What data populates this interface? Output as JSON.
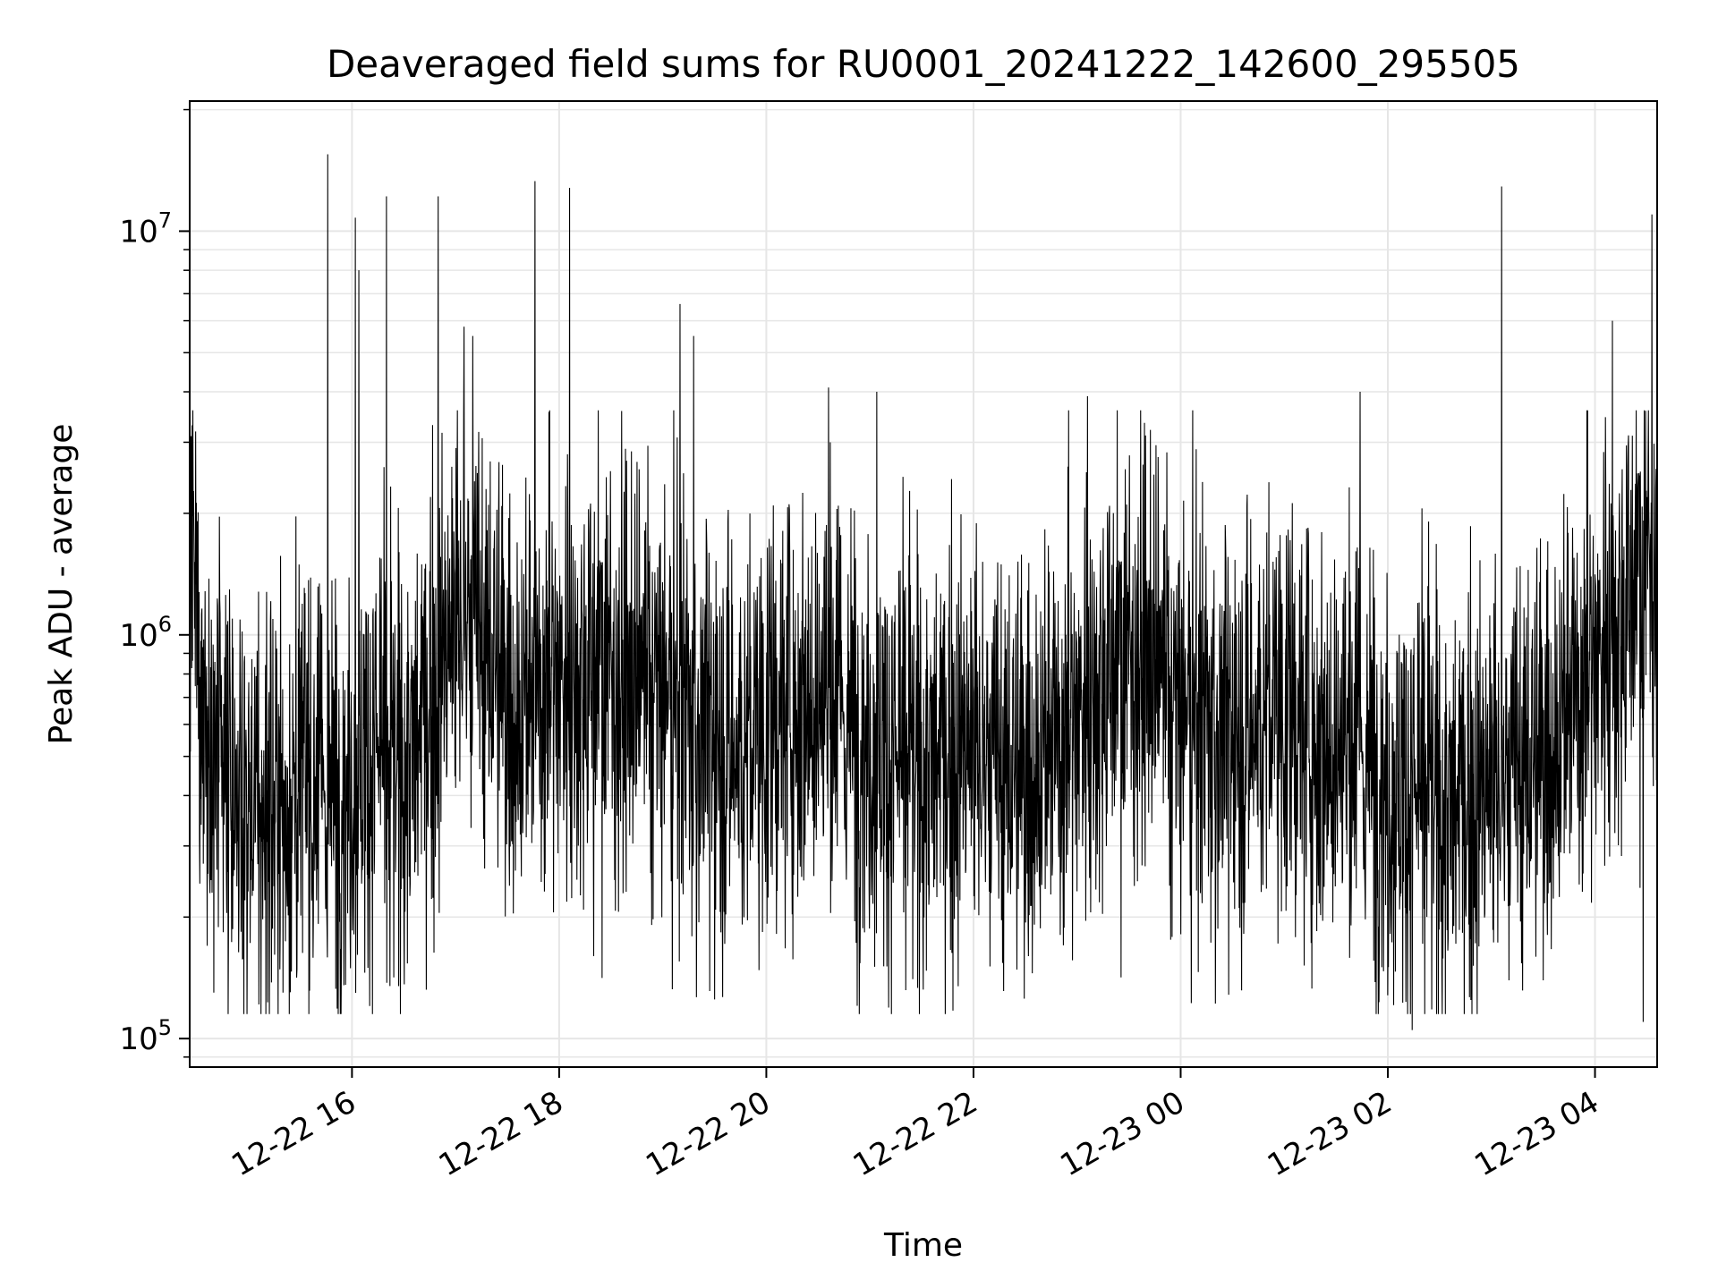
{
  "chart_data": {
    "type": "line",
    "title": "Deaveraged field sums for RU0001_20241222_142600_295505",
    "xlabel": "Time",
    "ylabel": "Peak ADU - average",
    "yscale": "log",
    "ylim": [
      85000,
      21000000
    ],
    "xlim": [
      "2024-12-22 14:26",
      "2024-12-23 04:36"
    ],
    "grid": true,
    "x_tick_labels": [
      {
        "t": "2024-12-22 16:00",
        "label": "12-22 16"
      },
      {
        "t": "2024-12-22 18:00",
        "label": "12-22 18"
      },
      {
        "t": "2024-12-22 20:00",
        "label": "12-22 20"
      },
      {
        "t": "2024-12-22 22:00",
        "label": "12-22 22"
      },
      {
        "t": "2024-12-23 00:00",
        "label": "12-23 00"
      },
      {
        "t": "2024-12-23 02:00",
        "label": "12-23 02"
      },
      {
        "t": "2024-12-23 04:00",
        "label": "12-23 04"
      }
    ],
    "y_tick_labels": [
      {
        "value": 100000,
        "base": "10",
        "exp": "5"
      },
      {
        "value": 1000000,
        "base": "10",
        "exp": "6"
      },
      {
        "value": 10000000,
        "base": "10",
        "exp": "7"
      }
    ],
    "line_color": "#000000",
    "series": [
      {
        "x": [
          "2024-12-22 14:26",
          "2024-12-22 14:35",
          "2024-12-22 14:45",
          "2024-12-22 14:55",
          "2024-12-22 15:05",
          "2024-12-22 15:15",
          "2024-12-22 15:25",
          "2024-12-22 15:35",
          "2024-12-22 15:45",
          "2024-12-22 15:55",
          "2024-12-22 16:05",
          "2024-12-22 16:15",
          "2024-12-22 16:25",
          "2024-12-22 16:35",
          "2024-12-22 16:45",
          "2024-12-22 16:55",
          "2024-12-22 17:05",
          "2024-12-22 17:15",
          "2024-12-22 17:25",
          "2024-12-22 17:35",
          "2024-12-22 17:45",
          "2024-12-22 17:55",
          "2024-12-22 18:05",
          "2024-12-22 18:15",
          "2024-12-22 18:25",
          "2024-12-22 18:35",
          "2024-12-22 18:45",
          "2024-12-22 18:55",
          "2024-12-22 19:05",
          "2024-12-22 19:15",
          "2024-12-22 19:25",
          "2024-12-22 19:35",
          "2024-12-22 19:45",
          "2024-12-22 19:55",
          "2024-12-22 20:05",
          "2024-12-22 20:15",
          "2024-12-22 20:25",
          "2024-12-22 20:35",
          "2024-12-22 20:45",
          "2024-12-22 20:55",
          "2024-12-22 21:05",
          "2024-12-22 21:15",
          "2024-12-22 21:25",
          "2024-12-22 21:35",
          "2024-12-22 21:45",
          "2024-12-22 21:55",
          "2024-12-22 22:05",
          "2024-12-22 22:15",
          "2024-12-22 22:25",
          "2024-12-22 22:35",
          "2024-12-22 22:45",
          "2024-12-22 22:55",
          "2024-12-22 23:05",
          "2024-12-22 23:15",
          "2024-12-22 23:25",
          "2024-12-22 23:35",
          "2024-12-22 23:45",
          "2024-12-22 23:55",
          "2024-12-23 00:05",
          "2024-12-23 00:15",
          "2024-12-23 00:25",
          "2024-12-23 00:35",
          "2024-12-23 00:45",
          "2024-12-23 00:55",
          "2024-12-23 01:05",
          "2024-12-23 01:15",
          "2024-12-23 01:25",
          "2024-12-23 01:35",
          "2024-12-23 01:45",
          "2024-12-23 01:55",
          "2024-12-23 02:05",
          "2024-12-23 02:15",
          "2024-12-23 02:25",
          "2024-12-23 02:35",
          "2024-12-23 02:45",
          "2024-12-23 02:55",
          "2024-12-23 03:05",
          "2024-12-23 03:15",
          "2024-12-23 03:25",
          "2024-12-23 03:35",
          "2024-12-23 03:45",
          "2024-12-23 03:55",
          "2024-12-23 04:05",
          "2024-12-23 04:15",
          "2024-12-23 04:25",
          "2024-12-23 04:35"
        ],
        "y": [
          1500000,
          600000,
          420000,
          350000,
          330000,
          380000,
          400000,
          420000,
          380000,
          400000,
          480000,
          520000,
          450000,
          500000,
          650000,
          900000,
          1100000,
          950000,
          800000,
          650000,
          700000,
          800000,
          780000,
          820000,
          850000,
          750000,
          700000,
          720000,
          650000,
          600000,
          580000,
          520000,
          500000,
          550000,
          620000,
          680000,
          700000,
          650000,
          600000,
          560000,
          520000,
          480000,
          450000,
          470000,
          500000,
          520000,
          480000,
          460000,
          450000,
          480000,
          520000,
          580000,
          700000,
          800000,
          850000,
          900000,
          780000,
          650000,
          600000,
          580000,
          560000,
          540000,
          600000,
          650000,
          620000,
          580000,
          540000,
          500000,
          480000,
          450000,
          420000,
          400000,
          380000,
          360000,
          380000,
          400000,
          420000,
          450000,
          480000,
          550000,
          650000,
          800000,
          950000,
          1100000,
          1400000,
          1600000
        ]
      }
    ],
    "spikes": [
      {
        "t": "2024-12-22 15:46",
        "y": 15500000
      },
      {
        "t": "2024-12-22 16:02",
        "y": 10800000
      },
      {
        "t": "2024-12-22 16:04",
        "y": 8000000
      },
      {
        "t": "2024-12-22 16:20",
        "y": 12200000
      },
      {
        "t": "2024-12-22 16:50",
        "y": 12200000
      },
      {
        "t": "2024-12-22 17:05",
        "y": 5800000
      },
      {
        "t": "2024-12-22 17:10",
        "y": 5500000
      },
      {
        "t": "2024-12-22 17:46",
        "y": 13300000
      },
      {
        "t": "2024-12-22 18:06",
        "y": 12800000
      },
      {
        "t": "2024-12-22 19:10",
        "y": 6600000
      },
      {
        "t": "2024-12-22 19:18",
        "y": 5500000
      },
      {
        "t": "2024-12-22 20:36",
        "y": 4100000
      },
      {
        "t": "2024-12-22 21:04",
        "y": 4000000
      },
      {
        "t": "2024-12-22 23:06",
        "y": 3900000
      },
      {
        "t": "2024-12-23 01:44",
        "y": 4000000
      },
      {
        "t": "2024-12-23 03:06",
        "y": 12900000
      },
      {
        "t": "2024-12-23 04:10",
        "y": 6000000
      },
      {
        "t": "2024-12-23 04:33",
        "y": 11000000
      }
    ],
    "dips": [
      {
        "t": "2024-12-22 14:40",
        "y": 130000
      },
      {
        "t": "2024-12-22 15:20",
        "y": 130000
      },
      {
        "t": "2024-12-22 16:22",
        "y": 135000
      },
      {
        "t": "2024-12-22 18:20",
        "y": 160000
      },
      {
        "t": "2024-12-22 19:30",
        "y": 125000
      },
      {
        "t": "2024-12-23 02:14",
        "y": 105000
      },
      {
        "t": "2024-12-23 02:00",
        "y": 128000
      },
      {
        "t": "2024-12-23 04:28",
        "y": 110000
      }
    ]
  }
}
